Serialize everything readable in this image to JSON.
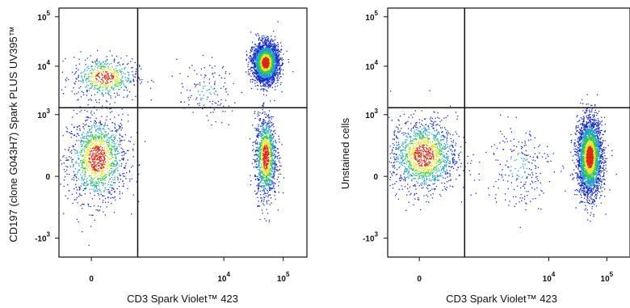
{
  "chart_data": [
    {
      "type": "scatter",
      "style": "flow-cytometry-density-dot-plot",
      "xlabel": "CD3 Spark Violet™ 423",
      "ylabel": "CD197 (clone G043H7) Spark PLUS UV395™",
      "x_scale": "biexponential",
      "y_scale": "biexponential",
      "x_ticks": [
        {
          "value": 0,
          "base": "0",
          "exp": ""
        },
        {
          "value": 10000,
          "base": "10",
          "exp": "4"
        },
        {
          "value": 100000,
          "base": "10",
          "exp": "5"
        }
      ],
      "y_ticks": [
        {
          "value": 100000,
          "base": "10",
          "exp": "5"
        },
        {
          "value": 10000,
          "base": "10",
          "exp": "4"
        },
        {
          "value": 1000,
          "base": "10",
          "exp": "3"
        },
        {
          "value": 0,
          "base": "0",
          "exp": ""
        },
        {
          "value": -1000,
          "base": "-10",
          "exp": "3"
        }
      ],
      "gate": {
        "x": 300,
        "y": 1400
      },
      "populations": [
        {
          "x": 15,
          "y": 80,
          "spread_x": 80,
          "spread_y": 350,
          "count": 1300
        },
        {
          "x": 40,
          "y": 6000,
          "spread_x": 120,
          "spread_y": 5000,
          "count": 550
        },
        {
          "x": 50000,
          "y": 90,
          "spread_x": 15000,
          "spread_y": 350,
          "count": 1200
        },
        {
          "x": 50000,
          "y": 12000,
          "spread_x": 18000,
          "spread_y": 9000,
          "count": 3000
        },
        {
          "x": 5000,
          "y": 3000,
          "spread_x": 5000,
          "spread_y": 4000,
          "count": 130
        }
      ]
    },
    {
      "type": "scatter",
      "style": "flow-cytometry-density-dot-plot",
      "xlabel": "CD3 Spark Violet™ 423",
      "ylabel": "Unstained cells",
      "x_scale": "biexponential",
      "y_scale": "biexponential",
      "x_ticks": [
        {
          "value": 0,
          "base": "0",
          "exp": ""
        },
        {
          "value": 10000,
          "base": "10",
          "exp": "4"
        },
        {
          "value": 100000,
          "base": "10",
          "exp": "5"
        }
      ],
      "y_ticks": [
        {
          "value": 100000,
          "base": "10",
          "exp": "5"
        },
        {
          "value": 10000,
          "base": "10",
          "exp": "4"
        },
        {
          "value": 1000,
          "base": "10",
          "exp": "3"
        },
        {
          "value": 0,
          "base": "0",
          "exp": ""
        },
        {
          "value": -1000,
          "base": "-10",
          "exp": "3"
        }
      ],
      "gate": {
        "x": 300,
        "y": 1400
      },
      "populations": [
        {
          "x": 10,
          "y": 100,
          "spread_x": 90,
          "spread_y": 300,
          "count": 1400
        },
        {
          "x": 50000,
          "y": 90,
          "spread_x": 18000,
          "spread_y": 300,
          "count": 3000
        },
        {
          "x": 3000,
          "y": 40,
          "spread_x": 4000,
          "spread_y": 250,
          "count": 220
        }
      ]
    }
  ],
  "colors": {
    "density_low": "#1428d2",
    "density_mid_low": "#1ea0c8",
    "density_mid": "#32c850",
    "density_mid_high": "#e6e628",
    "density_high": "#dc2814",
    "gate_line": "#111111",
    "frame": "#111111"
  }
}
